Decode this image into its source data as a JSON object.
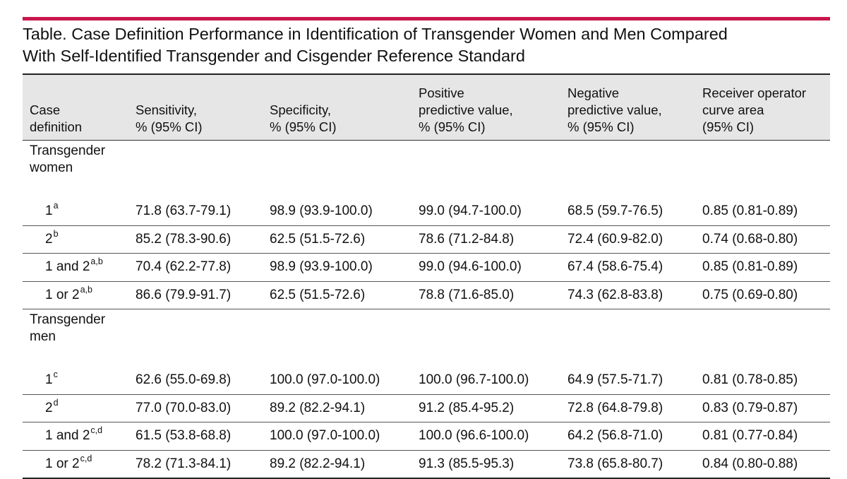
{
  "title": {
    "line1": "Table. Case Definition Performance in Identification of Transgender Women and Men Compared",
    "line2": "With Self-Identified Transgender and Cisgender Reference Standard"
  },
  "colors": {
    "accent_rule": "#c8174b",
    "header_bg": "#e6e6e6"
  },
  "headers": [
    {
      "lines": [
        "Case",
        "definition"
      ]
    },
    {
      "lines": [
        "Sensitivity,",
        "% (95% CI)"
      ]
    },
    {
      "lines": [
        "Specificity,",
        "% (95% CI)"
      ]
    },
    {
      "lines": [
        "Positive",
        "predictive value,",
        "% (95% CI)"
      ]
    },
    {
      "lines": [
        "Negative",
        "predictive value,",
        "% (95% CI)"
      ]
    },
    {
      "lines": [
        "Receiver operator",
        "curve area",
        "(95% CI)"
      ]
    }
  ],
  "groups": [
    {
      "label_lines": [
        "Transgender",
        "women"
      ],
      "rows": [
        {
          "def": "1",
          "sup": "a",
          "sens": "71.8 (63.7-79.1)",
          "spec": "98.9 (93.9-100.0)",
          "ppv": "99.0 (94.7-100.0)",
          "npv": "68.5 (59.7-76.5)",
          "roc": "0.85 (0.81-0.89)"
        },
        {
          "def": "2",
          "sup": "b",
          "sens": "85.2 (78.3-90.6)",
          "spec": "62.5 (51.5-72.6)",
          "ppv": "78.6 (71.2-84.8)",
          "npv": "72.4 (60.9-82.0)",
          "roc": "0.74 (0.68-0.80)"
        },
        {
          "def": "1 and 2",
          "sup": "a,b",
          "sens": "70.4 (62.2-77.8)",
          "spec": "98.9 (93.9-100.0)",
          "ppv": "99.0 (94.6-100.0)",
          "npv": "67.4 (58.6-75.4)",
          "roc": "0.85 (0.81-0.89)"
        },
        {
          "def": "1 or 2",
          "sup": "a,b",
          "sens": "86.6 (79.9-91.7)",
          "spec": "62.5 (51.5-72.6)",
          "ppv": "78.8 (71.6-85.0)",
          "npv": "74.3 (62.8-83.8)",
          "roc": "0.75 (0.69-0.80)"
        }
      ]
    },
    {
      "label_lines": [
        "Transgender",
        "men"
      ],
      "rows": [
        {
          "def": "1",
          "sup": "c",
          "sens": "62.6 (55.0-69.8)",
          "spec": "100.0 (97.0-100.0)",
          "ppv": "100.0 (96.7-100.0)",
          "npv": "64.9 (57.5-71.7)",
          "roc": "0.81 (0.78-0.85)"
        },
        {
          "def": "2",
          "sup": "d",
          "sens": "77.0 (70.0-83.0)",
          "spec": "89.2 (82.2-94.1)",
          "ppv": "91.2 (85.4-95.2)",
          "npv": "72.8 (64.8-79.8)",
          "roc": "0.83 (0.79-0.87)"
        },
        {
          "def": "1 and 2",
          "sup": "c,d",
          "sens": "61.5 (53.8-68.8)",
          "spec": "100.0 (97.0-100.0)",
          "ppv": "100.0 (96.6-100.0)",
          "npv": "64.2 (56.8-71.0)",
          "roc": "0.81 (0.77-0.84)"
        },
        {
          "def": "1 or 2",
          "sup": "c,d",
          "sens": "78.2 (71.3-84.1)",
          "spec": "89.2 (82.2-94.1)",
          "ppv": "91.3 (85.5-95.3)",
          "npv": "73.8 (65.8-80.7)",
          "roc": "0.84 (0.80-0.88)"
        }
      ]
    }
  ]
}
